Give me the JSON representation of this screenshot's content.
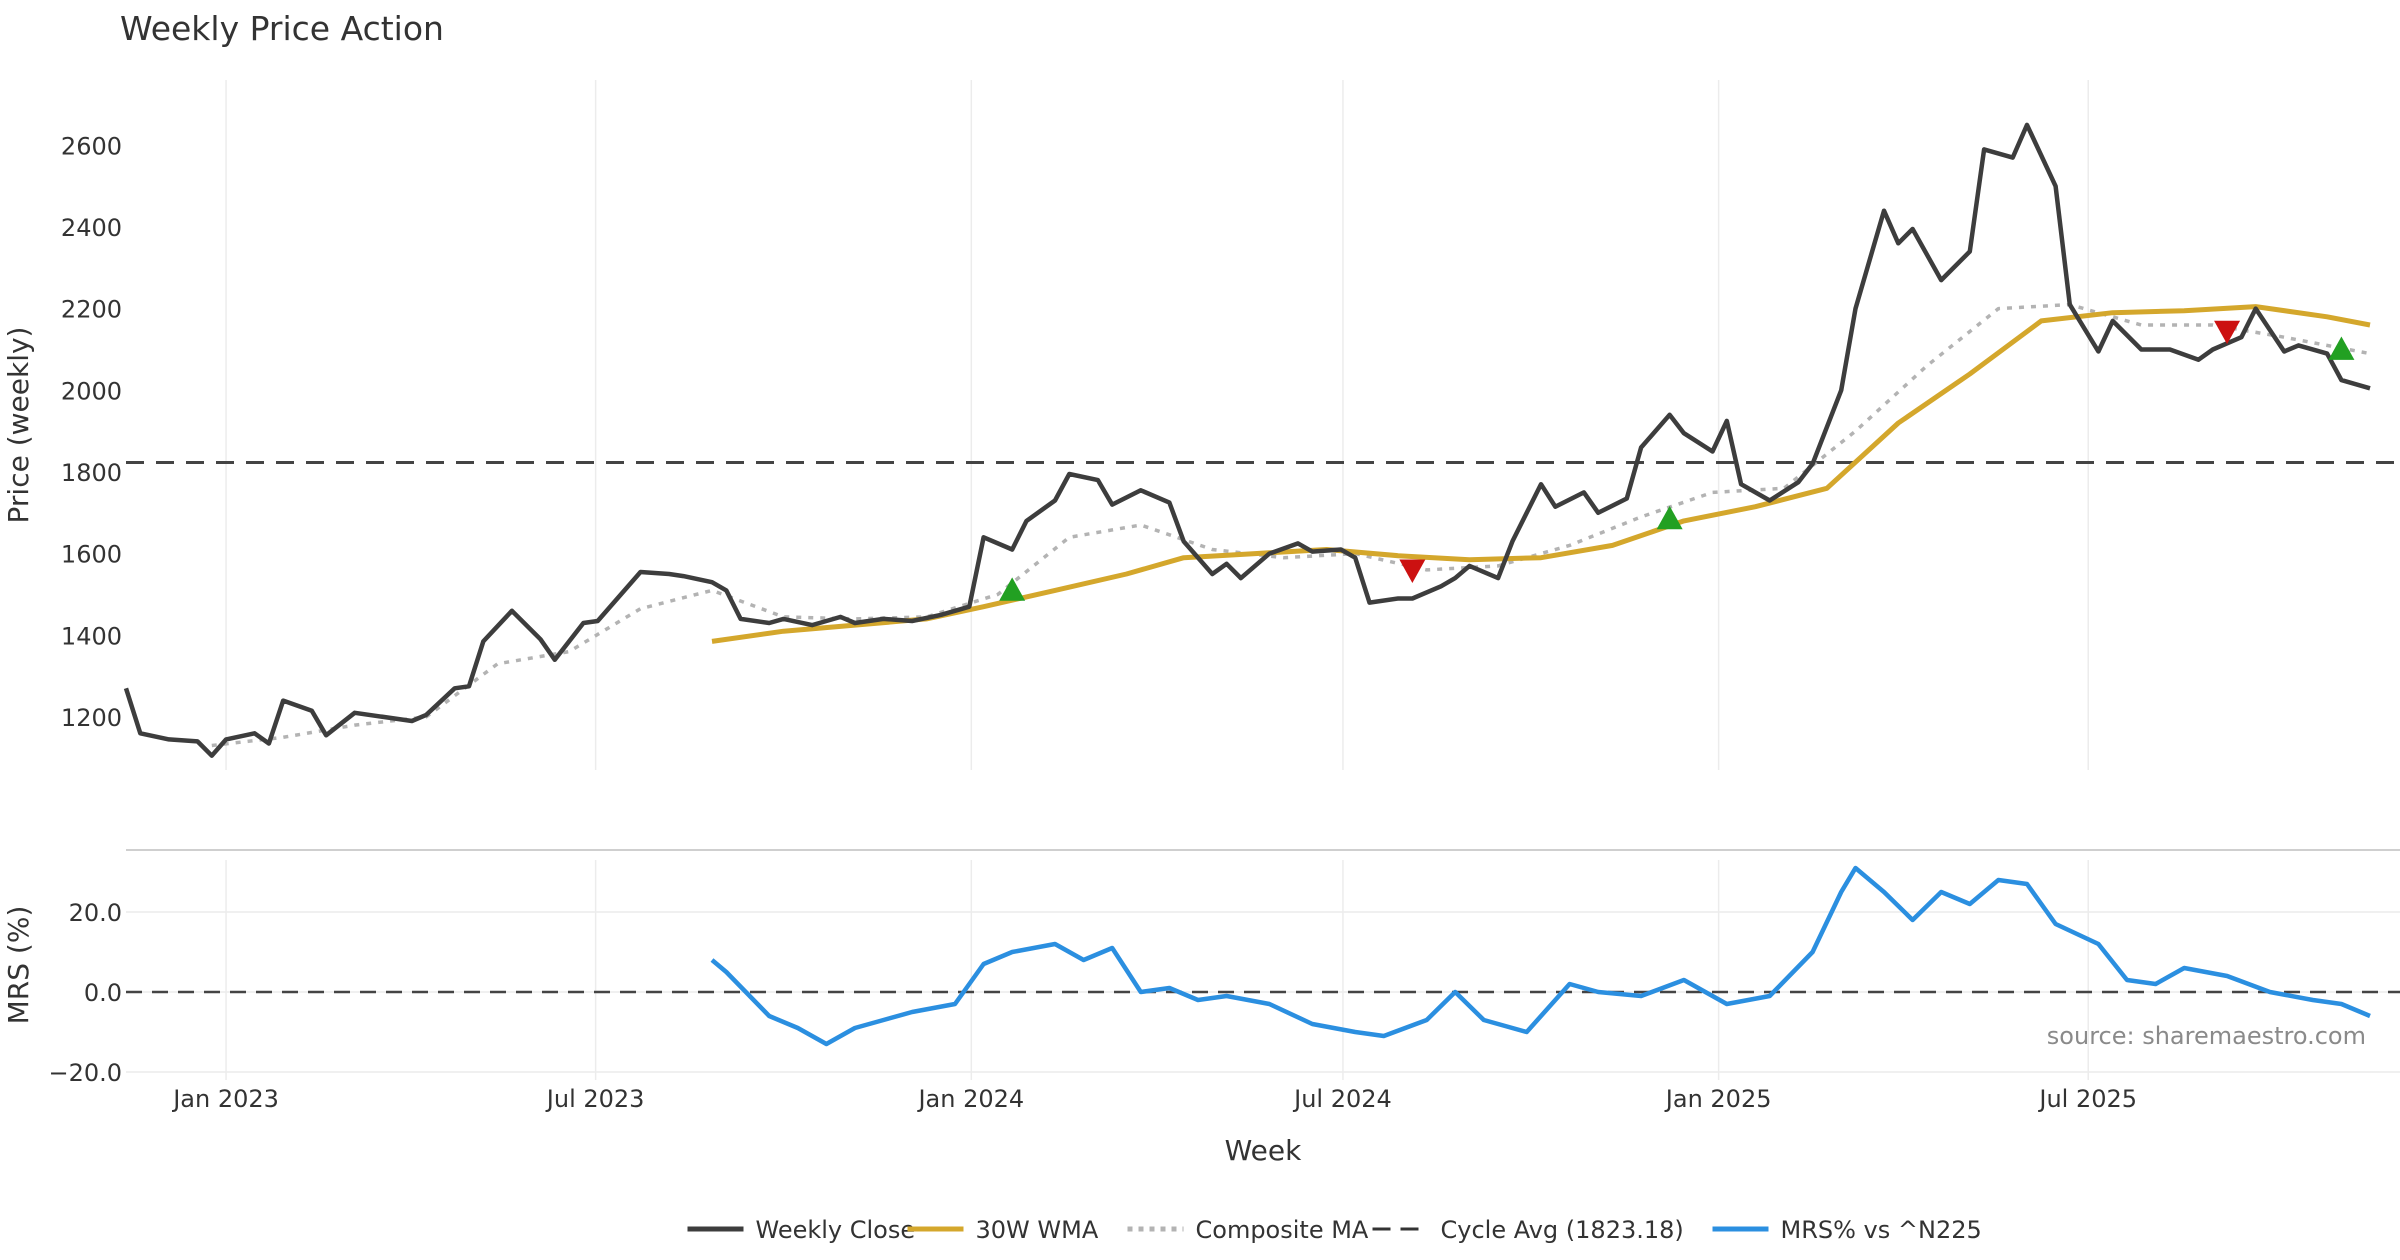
{
  "chart_data": [
    {
      "type": "line",
      "title": "Weekly Price Action",
      "ylabel": "Price (weekly)",
      "xlabel": "",
      "ylim": [
        1070,
        2760
      ],
      "yticks": [
        1200,
        1400,
        1600,
        1800,
        2000,
        2200,
        2400,
        2600
      ],
      "x_range": [
        "2022-11-13",
        "2025-11-16"
      ],
      "x_ticks": [
        {
          "date": "2023-01-01",
          "label": "Jan 2023"
        },
        {
          "date": "2023-07-01",
          "label": "Jul 2023"
        },
        {
          "date": "2024-01-01",
          "label": "Jan 2024"
        },
        {
          "date": "2024-07-01",
          "label": "Jul 2024"
        },
        {
          "date": "2025-01-01",
          "label": "Jan 2025"
        },
        {
          "date": "2025-07-01",
          "label": "Jul 2025"
        }
      ],
      "grid": "vertical",
      "reference_line": {
        "value": 1823.18,
        "name": "Cycle Avg (1823.18)"
      },
      "series": [
        {
          "name": "Weekly Close",
          "color": "#3d3d3d",
          "points": [
            [
              "2022-11-13",
              1270
            ],
            [
              "2022-11-20",
              1160
            ],
            [
              "2022-12-04",
              1145
            ],
            [
              "2022-12-18",
              1140
            ],
            [
              "2022-12-25",
              1105
            ],
            [
              "2023-01-01",
              1145
            ],
            [
              "2023-01-15",
              1160
            ],
            [
              "2023-01-22",
              1135
            ],
            [
              "2023-01-29",
              1240
            ],
            [
              "2023-02-12",
              1215
            ],
            [
              "2023-02-19",
              1155
            ],
            [
              "2023-03-05",
              1210
            ],
            [
              "2023-03-19",
              1200
            ],
            [
              "2023-04-02",
              1190
            ],
            [
              "2023-04-09",
              1205
            ],
            [
              "2023-04-23",
              1270
            ],
            [
              "2023-04-30",
              1275
            ],
            [
              "2023-05-07",
              1385
            ],
            [
              "2023-05-21",
              1460
            ],
            [
              "2023-06-04",
              1390
            ],
            [
              "2023-06-11",
              1340
            ],
            [
              "2023-06-25",
              1430
            ],
            [
              "2023-07-02",
              1435
            ],
            [
              "2023-07-09",
              1475
            ],
            [
              "2023-07-23",
              1555
            ],
            [
              "2023-08-06",
              1550
            ],
            [
              "2023-08-13",
              1545
            ],
            [
              "2023-08-27",
              1530
            ],
            [
              "2023-09-03",
              1510
            ],
            [
              "2023-09-10",
              1440
            ],
            [
              "2023-09-24",
              1430
            ],
            [
              "2023-10-01",
              1440
            ],
            [
              "2023-10-15",
              1425
            ],
            [
              "2023-10-29",
              1445
            ],
            [
              "2023-11-05",
              1430
            ],
            [
              "2023-11-19",
              1440
            ],
            [
              "2023-12-03",
              1435
            ],
            [
              "2023-12-17",
              1450
            ],
            [
              "2023-12-31",
              1470
            ],
            [
              "2024-01-07",
              1640
            ],
            [
              "2024-01-21",
              1610
            ],
            [
              "2024-01-28",
              1680
            ],
            [
              "2024-02-11",
              1730
            ],
            [
              "2024-02-18",
              1795
            ],
            [
              "2024-03-03",
              1780
            ],
            [
              "2024-03-10",
              1720
            ],
            [
              "2024-03-24",
              1755
            ],
            [
              "2024-04-07",
              1725
            ],
            [
              "2024-04-14",
              1630
            ],
            [
              "2024-04-28",
              1550
            ],
            [
              "2024-05-05",
              1575
            ],
            [
              "2024-05-12",
              1540
            ],
            [
              "2024-05-26",
              1600
            ],
            [
              "2024-06-09",
              1625
            ],
            [
              "2024-06-16",
              1605
            ],
            [
              "2024-06-30",
              1610
            ],
            [
              "2024-07-07",
              1590
            ],
            [
              "2024-07-14",
              1480
            ],
            [
              "2024-07-28",
              1490
            ],
            [
              "2024-08-04",
              1490
            ],
            [
              "2024-08-18",
              1520
            ],
            [
              "2024-08-25",
              1540
            ],
            [
              "2024-09-01",
              1570
            ],
            [
              "2024-09-15",
              1540
            ],
            [
              "2024-09-22",
              1630
            ],
            [
              "2024-10-06",
              1770
            ],
            [
              "2024-10-13",
              1715
            ],
            [
              "2024-10-27",
              1750
            ],
            [
              "2024-11-03",
              1700
            ],
            [
              "2024-11-17",
              1735
            ],
            [
              "2024-11-24",
              1860
            ],
            [
              "2024-12-08",
              1940
            ],
            [
              "2024-12-15",
              1895
            ],
            [
              "2024-12-29",
              1850
            ],
            [
              "2025-01-05",
              1925
            ],
            [
              "2025-01-12",
              1770
            ],
            [
              "2025-01-26",
              1730
            ],
            [
              "2025-02-09",
              1775
            ],
            [
              "2025-02-16",
              1820
            ],
            [
              "2025-03-02",
              2000
            ],
            [
              "2025-03-09",
              2200
            ],
            [
              "2025-03-23",
              2440
            ],
            [
              "2025-03-30",
              2360
            ],
            [
              "2025-04-06",
              2395
            ],
            [
              "2025-04-20",
              2270
            ],
            [
              "2025-05-04",
              2340
            ],
            [
              "2025-05-11",
              2590
            ],
            [
              "2025-05-25",
              2570
            ],
            [
              "2025-06-01",
              2650
            ],
            [
              "2025-06-15",
              2500
            ],
            [
              "2025-06-22",
              2210
            ],
            [
              "2025-07-06",
              2095
            ],
            [
              "2025-07-13",
              2170
            ],
            [
              "2025-07-27",
              2100
            ],
            [
              "2025-08-10",
              2100
            ],
            [
              "2025-08-24",
              2075
            ],
            [
              "2025-08-31",
              2100
            ],
            [
              "2025-09-14",
              2130
            ],
            [
              "2025-09-21",
              2200
            ],
            [
              "2025-10-05",
              2095
            ],
            [
              "2025-10-12",
              2110
            ],
            [
              "2025-10-26",
              2090
            ],
            [
              "2025-11-02",
              2025
            ],
            [
              "2025-11-16",
              2005
            ]
          ]
        },
        {
          "name": "30W WMA",
          "color": "#d4a72c",
          "points": [
            [
              "2023-08-27",
              1385
            ],
            [
              "2023-10-01",
              1410
            ],
            [
              "2023-11-05",
              1425
            ],
            [
              "2023-12-10",
              1440
            ],
            [
              "2024-01-07",
              1470
            ],
            [
              "2024-02-11",
              1510
            ],
            [
              "2024-03-17",
              1550
            ],
            [
              "2024-04-14",
              1590
            ],
            [
              "2024-05-19",
              1600
            ],
            [
              "2024-06-23",
              1610
            ],
            [
              "2024-07-28",
              1595
            ],
            [
              "2024-09-01",
              1585
            ],
            [
              "2024-10-06",
              1590
            ],
            [
              "2024-11-10",
              1620
            ],
            [
              "2024-12-15",
              1680
            ],
            [
              "2025-01-19",
              1715
            ],
            [
              "2025-02-23",
              1760
            ],
            [
              "2025-03-30",
              1920
            ],
            [
              "2025-05-04",
              2040
            ],
            [
              "2025-06-08",
              2170
            ],
            [
              "2025-07-13",
              2190
            ],
            [
              "2025-08-17",
              2195
            ],
            [
              "2025-09-21",
              2205
            ],
            [
              "2025-10-26",
              2180
            ],
            [
              "2025-11-16",
              2160
            ]
          ]
        },
        {
          "name": "Composite MA",
          "color": "#b3b3b3",
          "points": [
            [
              "2022-12-25",
              1130
            ],
            [
              "2023-01-29",
              1150
            ],
            [
              "2023-03-05",
              1180
            ],
            [
              "2023-04-09",
              1200
            ],
            [
              "2023-05-14",
              1330
            ],
            [
              "2023-06-18",
              1360
            ],
            [
              "2023-07-23",
              1465
            ],
            [
              "2023-08-27",
              1510
            ],
            [
              "2023-10-01",
              1445
            ],
            [
              "2023-11-05",
              1440
            ],
            [
              "2023-12-10",
              1445
            ],
            [
              "2024-01-14",
              1500
            ],
            [
              "2024-02-18",
              1640
            ],
            [
              "2024-03-24",
              1670
            ],
            [
              "2024-04-28",
              1610
            ],
            [
              "2024-06-02",
              1590
            ],
            [
              "2024-07-07",
              1600
            ],
            [
              "2024-08-11",
              1560
            ],
            [
              "2024-09-15",
              1570
            ],
            [
              "2024-10-20",
              1620
            ],
            [
              "2024-11-24",
              1690
            ],
            [
              "2024-12-29",
              1750
            ],
            [
              "2025-02-02",
              1760
            ],
            [
              "2025-03-09",
              1900
            ],
            [
              "2025-04-13",
              2060
            ],
            [
              "2025-05-18",
              2200
            ],
            [
              "2025-06-22",
              2210
            ],
            [
              "2025-07-27",
              2160
            ],
            [
              "2025-08-31",
              2160
            ],
            [
              "2025-10-05",
              2130
            ],
            [
              "2025-11-16",
              2090
            ]
          ]
        }
      ],
      "markers": [
        {
          "type": "buy",
          "date": "2024-01-21",
          "value": 1510,
          "color": "#22a022"
        },
        {
          "type": "sell",
          "date": "2024-08-04",
          "value": 1560,
          "color": "#cc1111"
        },
        {
          "type": "buy",
          "date": "2024-12-08",
          "value": 1685,
          "color": "#22a022"
        },
        {
          "type": "sell",
          "date": "2025-09-07",
          "value": 2145,
          "color": "#cc1111"
        },
        {
          "type": "buy",
          "date": "2025-11-02",
          "value": 2100,
          "color": "#22a022"
        }
      ]
    },
    {
      "type": "line",
      "title": "",
      "ylabel": "MRS (%)",
      "xlabel": "Week",
      "ylim": [
        -22,
        33
      ],
      "yticks": [
        -20.0,
        0.0,
        20.0
      ],
      "ytick_labels": [
        "−20.0",
        "0.0",
        "20.0"
      ],
      "reference_line": {
        "value": 0
      },
      "series": [
        {
          "name": "MRS% vs ^N225",
          "color": "#2b8fe0",
          "points": [
            [
              "2023-08-27",
              8
            ],
            [
              "2023-09-03",
              5
            ],
            [
              "2023-09-24",
              -6
            ],
            [
              "2023-10-08",
              -9
            ],
            [
              "2023-10-22",
              -13
            ],
            [
              "2023-11-05",
              -9
            ],
            [
              "2023-11-19",
              -7
            ],
            [
              "2023-12-03",
              -5
            ],
            [
              "2023-12-24",
              -3
            ],
            [
              "2024-01-07",
              7
            ],
            [
              "2024-01-21",
              10
            ],
            [
              "2024-02-11",
              12
            ],
            [
              "2024-02-25",
              8
            ],
            [
              "2024-03-10",
              11
            ],
            [
              "2024-03-24",
              0
            ],
            [
              "2024-04-07",
              1
            ],
            [
              "2024-04-21",
              -2
            ],
            [
              "2024-05-05",
              -1
            ],
            [
              "2024-05-26",
              -3
            ],
            [
              "2024-06-16",
              -8
            ],
            [
              "2024-07-07",
              -10
            ],
            [
              "2024-07-21",
              -11
            ],
            [
              "2024-08-11",
              -7
            ],
            [
              "2024-08-25",
              0
            ],
            [
              "2024-09-08",
              -7
            ],
            [
              "2024-09-29",
              -10
            ],
            [
              "2024-10-20",
              2
            ],
            [
              "2024-11-03",
              0
            ],
            [
              "2024-11-24",
              -1
            ],
            [
              "2024-12-15",
              3
            ],
            [
              "2025-01-05",
              -3
            ],
            [
              "2025-01-26",
              -1
            ],
            [
              "2025-02-16",
              10
            ],
            [
              "2025-03-02",
              25
            ],
            [
              "2025-03-09",
              31
            ],
            [
              "2025-03-23",
              25
            ],
            [
              "2025-04-06",
              18
            ],
            [
              "2025-04-20",
              25
            ],
            [
              "2025-05-04",
              22
            ],
            [
              "2025-05-18",
              28
            ],
            [
              "2025-06-01",
              27
            ],
            [
              "2025-06-15",
              17
            ],
            [
              "2025-07-06",
              12
            ],
            [
              "2025-07-20",
              3
            ],
            [
              "2025-08-03",
              2
            ],
            [
              "2025-08-17",
              6
            ],
            [
              "2025-09-07",
              4
            ],
            [
              "2025-09-28",
              0
            ],
            [
              "2025-10-19",
              -2
            ],
            [
              "2025-11-02",
              -3
            ],
            [
              "2025-11-16",
              -6
            ]
          ]
        }
      ],
      "source_note": "source: sharemaestro.com"
    }
  ],
  "legend": [
    {
      "name": "Weekly Close",
      "style": "solid",
      "color": "#3d3d3d"
    },
    {
      "name": "30W WMA",
      "style": "solid",
      "color": "#d4a72c"
    },
    {
      "name": "Composite MA",
      "style": "dotted",
      "color": "#b3b3b3"
    },
    {
      "name": "Cycle Avg (1823.18)",
      "style": "dashed",
      "color": "#333333"
    },
    {
      "name": "MRS% vs ^N225",
      "style": "solid",
      "color": "#2b8fe0"
    }
  ]
}
